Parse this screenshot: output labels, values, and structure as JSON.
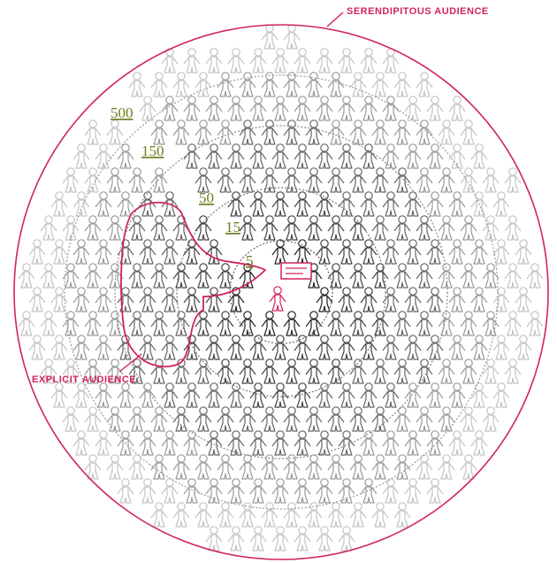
{
  "annotations": {
    "serendipitous": "SERENDIPITOUS AUDIENCE",
    "explicit": "EXPLICIT AUDIENCE"
  },
  "rings": [
    {
      "label": "500"
    },
    {
      "label": "150"
    },
    {
      "label": "50"
    },
    {
      "label": "15"
    },
    {
      "label": "5"
    }
  ]
}
